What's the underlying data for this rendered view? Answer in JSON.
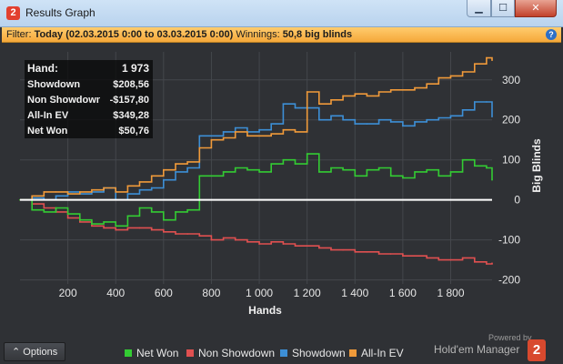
{
  "window": {
    "title": "Results Graph",
    "app_icon": "2",
    "controls": {
      "minimize": "▁",
      "maximize": "☐",
      "close": "✕"
    }
  },
  "filter_bar": {
    "filter_label": "Filter:",
    "filter_value": "Today (02.03.2015 0:00 to 03.03.2015 0:00)",
    "winnings_label": "Winnings:",
    "winnings_value": "50,8 big blinds",
    "help_icon": "?"
  },
  "stats": [
    {
      "label": "Hand:",
      "value": "1 973"
    },
    {
      "label": "Showdown",
      "value": "$208,56"
    },
    {
      "label": "Non Showdown",
      "value": "-$157,80"
    },
    {
      "label": "All-In EV",
      "value": "$349,28"
    },
    {
      "label": "Net Won",
      "value": "$50,76"
    }
  ],
  "footer": {
    "options_label": "Options",
    "options_icon": "⌃",
    "powered_by": "Powered by",
    "brand": "Hold'em Manager",
    "brand_icon": "2"
  },
  "colors": {
    "background": "#2f3135",
    "net_won": "#33cc33",
    "non_showdown": "#e05050",
    "showdown": "#3d8fd6",
    "all_in_ev": "#f09a3a",
    "zero_line": "#ffffff"
  },
  "chart_data": {
    "type": "line",
    "xlabel": "Hands",
    "ylabel": "Big Blinds",
    "xlim": [
      0,
      1973
    ],
    "ylim": [
      -210,
      370
    ],
    "xticks": [
      200,
      400,
      600,
      800,
      1000,
      1200,
      1400,
      1600,
      1800
    ],
    "xtick_labels": [
      "200",
      "400",
      "600",
      "800",
      "1 000",
      "1 200",
      "1 400",
      "1 600",
      "1 800"
    ],
    "yticks": [
      300,
      200,
      100,
      0,
      -100,
      -200
    ],
    "ytick_labels": [
      "300",
      "200",
      "100",
      "0",
      "-100",
      "-200"
    ],
    "grid": true,
    "legend_position": "bottom",
    "x": [
      0,
      50,
      100,
      150,
      200,
      250,
      300,
      350,
      400,
      450,
      500,
      550,
      600,
      650,
      700,
      750,
      800,
      850,
      900,
      950,
      1000,
      1050,
      1100,
      1150,
      1200,
      1250,
      1300,
      1350,
      1400,
      1450,
      1500,
      1550,
      1600,
      1650,
      1700,
      1750,
      1800,
      1850,
      1900,
      1950,
      1973
    ],
    "series": [
      {
        "name": "Net Won",
        "color": "#33cc33",
        "values": [
          0,
          -25,
          -30,
          -20,
          -35,
          -50,
          -60,
          -55,
          -65,
          -40,
          -20,
          -30,
          -50,
          -30,
          -25,
          60,
          60,
          70,
          80,
          75,
          70,
          90,
          100,
          90,
          115,
          70,
          80,
          75,
          60,
          75,
          80,
          60,
          55,
          70,
          75,
          60,
          70,
          100,
          85,
          80,
          50
        ]
      },
      {
        "name": "Non Showdown",
        "color": "#e05050",
        "values": [
          0,
          -10,
          -20,
          -30,
          -45,
          -55,
          -65,
          -70,
          -75,
          -70,
          -70,
          -75,
          -80,
          -85,
          -85,
          -90,
          -100,
          -95,
          -100,
          -105,
          -110,
          -105,
          -110,
          -115,
          -115,
          -120,
          -125,
          -125,
          -130,
          -130,
          -135,
          -135,
          -140,
          -140,
          -145,
          -150,
          -150,
          -145,
          -155,
          -160,
          -158
        ]
      },
      {
        "name": "Showdown",
        "color": "#3d8fd6",
        "values": [
          0,
          5,
          0,
          10,
          20,
          15,
          20,
          30,
          0,
          15,
          25,
          30,
          50,
          70,
          80,
          160,
          160,
          170,
          180,
          170,
          175,
          190,
          240,
          230,
          230,
          200,
          210,
          200,
          190,
          190,
          200,
          195,
          185,
          195,
          200,
          205,
          210,
          225,
          245,
          245,
          208
        ]
      },
      {
        "name": "All-In EV",
        "color": "#f09a3a",
        "values": [
          0,
          10,
          20,
          20,
          15,
          20,
          25,
          30,
          20,
          35,
          45,
          60,
          75,
          90,
          95,
          130,
          150,
          155,
          170,
          160,
          160,
          165,
          175,
          170,
          270,
          240,
          250,
          260,
          265,
          260,
          270,
          275,
          275,
          280,
          290,
          305,
          310,
          320,
          340,
          355,
          349
        ]
      }
    ]
  }
}
